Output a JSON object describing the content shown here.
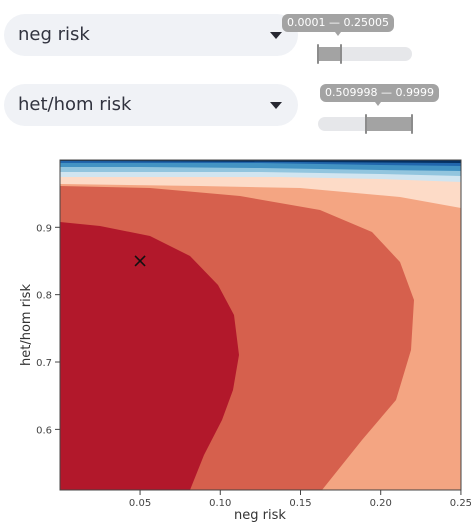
{
  "controls": {
    "x_select": {
      "value": "neg risk"
    },
    "y_select": {
      "value": "het/hom risk"
    },
    "x_range": {
      "label": "0.0001 — 0.25005",
      "low": 0.0001,
      "high": 0.25005,
      "track_min": 0.0001,
      "track_max": 1.0
    },
    "y_range": {
      "label": "0.509998 — 0.9999",
      "low": 0.509998,
      "high": 0.9999,
      "track_min": 0.0001,
      "track_max": 1.0
    }
  },
  "chart_data": {
    "type": "heatmap",
    "title": "",
    "xlabel": "neg risk",
    "ylabel": "het/hom risk",
    "xlim": [
      0.0001,
      0.25005
    ],
    "ylim": [
      0.509998,
      0.9999
    ],
    "x_ticks": [
      0.05,
      0.1,
      0.15,
      0.2,
      0.25
    ],
    "x_tick_labels": [
      "0.05",
      "0.10",
      "0.15",
      "0.20",
      "0.25"
    ],
    "y_ticks": [
      0.6,
      0.7,
      0.8,
      0.9
    ],
    "y_tick_labels": [
      "0.6",
      "0.7",
      "0.8",
      "0.9"
    ],
    "colormap": "RdBu",
    "contours": [
      {
        "level": 1,
        "color": "#b2182b"
      },
      {
        "level": 2,
        "color": "#d6604d"
      },
      {
        "level": 3,
        "color": "#f4a582"
      },
      {
        "level": 4,
        "color": "#fddbc7"
      },
      {
        "level": 5,
        "color": "#d1e5f0"
      },
      {
        "level": 6,
        "color": "#92c5de"
      },
      {
        "level": 7,
        "color": "#4393c3"
      },
      {
        "level": 8,
        "color": "#2166ac"
      },
      {
        "level": 9,
        "color": "#053061"
      }
    ],
    "marker": {
      "x": 0.05,
      "y": 0.85,
      "symbol": "x"
    },
    "grid": false,
    "legend": "none"
  }
}
